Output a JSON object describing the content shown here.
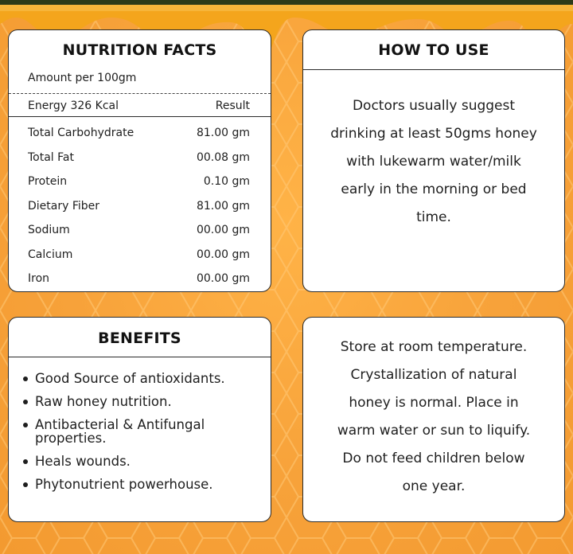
{
  "nutrition": {
    "title": "NUTRITION FACTS",
    "amount": "Amount per 100gm",
    "header_label": "Energy 326 Kcal",
    "header_value": "Result",
    "rows": [
      {
        "label": "Total Carbohydrate",
        "value": "81.00 gm"
      },
      {
        "label": "Total Fat",
        "value": "00.08 gm"
      },
      {
        "label": "Protein",
        "value": "0.10 gm"
      },
      {
        "label": "Dietary Fiber",
        "value": "81.00 gm"
      },
      {
        "label": "Sodium",
        "value": "00.00 gm"
      },
      {
        "label": "Calcium",
        "value": "00.00 gm"
      },
      {
        "label": "Iron",
        "value": "00.00 gm"
      }
    ]
  },
  "howto": {
    "title": "HOW TO USE",
    "lines": [
      "Doctors usually suggest",
      "drinking at least 50gms honey",
      "with lukewarm water/milk",
      "early in the morning or bed",
      "time."
    ]
  },
  "benefits": {
    "title": "BENEFITS",
    "items": [
      "Good Source of antioxidants.",
      "Raw honey nutrition.",
      "Antibacterial & Antifungal properties.",
      "Heals wounds.",
      "Phytonutrient powerhouse."
    ]
  },
  "storage": {
    "lines": [
      "Store at room temperature.",
      "Crystallization of natural",
      "honey is normal. Place in",
      "warm water or sun to liquify.",
      "Do not feed children below",
      "one year."
    ]
  },
  "colors": {
    "background": "#f7a640",
    "honey": "#f4a51c",
    "border": "#2a2a2a",
    "top_bar": "#2c3a18"
  }
}
